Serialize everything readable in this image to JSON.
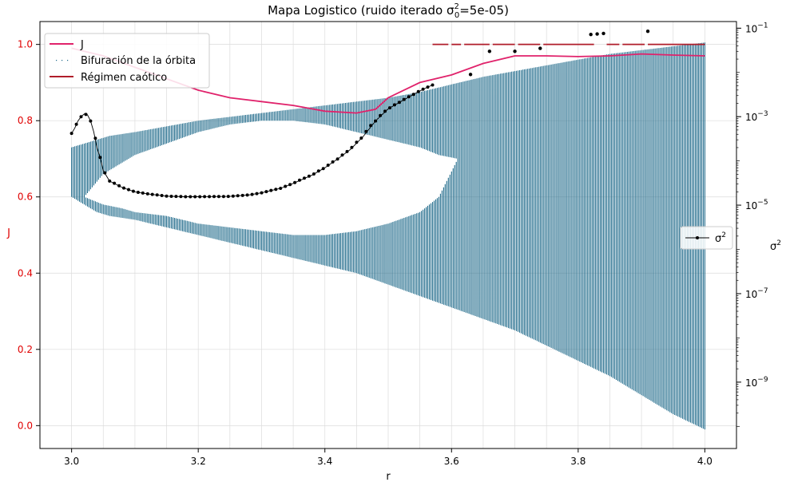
{
  "chart_data": {
    "type": "line",
    "title_main": "Mapa Logistico (ruido iterado ",
    "title_sigma": "σ",
    "title_sup": "2",
    "title_sub": "0",
    "title_tail": "=5e-05)",
    "xlabel": "r",
    "ylabel_left": "J",
    "ylabel_right_base": "σ",
    "ylabel_right_sup": "2",
    "xlim": [
      2.95,
      4.05
    ],
    "ylim_left": [
      -0.06,
      1.06
    ],
    "ylim_right_log10": [
      -10.5,
      -0.85
    ],
    "scale_right": "log",
    "grid": true,
    "x_ticks": [
      {
        "v": 3.0,
        "label": "3.0"
      },
      {
        "v": 3.2,
        "label": "3.2"
      },
      {
        "v": 3.4,
        "label": "3.4"
      },
      {
        "v": 3.6,
        "label": "3.6"
      },
      {
        "v": 3.8,
        "label": "3.8"
      },
      {
        "v": 4.0,
        "label": "4.0"
      }
    ],
    "x_minor_ticks": [
      3.05,
      3.1,
      3.15,
      3.25,
      3.3,
      3.35,
      3.45,
      3.5,
      3.55,
      3.65,
      3.7,
      3.75,
      3.85,
      3.9,
      3.95
    ],
    "y_left_ticks": [
      {
        "v": 0.0,
        "label": "0.0"
      },
      {
        "v": 0.2,
        "label": "0.2"
      },
      {
        "v": 0.4,
        "label": "0.4"
      },
      {
        "v": 0.6,
        "label": "0.6"
      },
      {
        "v": 0.8,
        "label": "0.8"
      },
      {
        "v": 1.0,
        "label": "1.0"
      }
    ],
    "y_right_ticks": [
      {
        "exp": -9,
        "base": "10",
        "sup": "−9"
      },
      {
        "exp": -7,
        "base": "10",
        "sup": "−7"
      },
      {
        "exp": -5,
        "base": "10",
        "sup": "−5"
      },
      {
        "exp": -3,
        "base": "10",
        "sup": "−3"
      },
      {
        "exp": -1,
        "base": "10",
        "sup": "−1"
      }
    ],
    "legend_main": {
      "placement": "upper-left",
      "entries": [
        {
          "label": "J",
          "color": "#e0226b",
          "kind": "line"
        },
        {
          "label": "Bifuración de la órbita",
          "color": "#1f6a8a",
          "kind": "dots"
        },
        {
          "label": "Régimen caótico",
          "color": "#b01d2a",
          "kind": "line"
        }
      ]
    },
    "legend_sigma": {
      "placement": "center-right",
      "entries": [
        {
          "label_base": "σ",
          "label_sup": "2",
          "color": "#000000",
          "kind": "line-marker"
        }
      ]
    },
    "colors": {
      "J": "#e0226b",
      "orbit": "#1f6a8a",
      "chaotic": "#b01d2a",
      "sigma2": "#000000",
      "left_axis_text": "#e00000"
    },
    "series": [
      {
        "name": "J",
        "axis": "left",
        "x": [
          3.0,
          3.05,
          3.1,
          3.15,
          3.2,
          3.25,
          3.3,
          3.35,
          3.4,
          3.45,
          3.48,
          3.5,
          3.55,
          3.6,
          3.65,
          3.7,
          3.75,
          3.8,
          3.85,
          3.9,
          3.95,
          4.0
        ],
        "y": [
          0.99,
          0.97,
          0.94,
          0.91,
          0.88,
          0.86,
          0.85,
          0.84,
          0.825,
          0.82,
          0.83,
          0.86,
          0.9,
          0.92,
          0.95,
          0.97,
          0.97,
          0.968,
          0.97,
          0.975,
          0.972,
          0.97
        ]
      },
      {
        "name": "Bifuración de la órbita",
        "axis": "left",
        "kind": "envelope",
        "x": [
          3.0,
          3.02,
          3.04,
          3.06,
          3.1,
          3.15,
          3.2,
          3.25,
          3.3,
          3.35,
          3.4,
          3.45,
          3.5,
          3.55,
          3.6,
          3.65,
          3.7,
          3.75,
          3.8,
          3.85,
          3.9,
          3.95,
          4.0
        ],
        "upper": [
          0.73,
          0.74,
          0.75,
          0.76,
          0.77,
          0.785,
          0.8,
          0.81,
          0.82,
          0.83,
          0.84,
          0.85,
          0.86,
          0.875,
          0.895,
          0.915,
          0.93,
          0.945,
          0.96,
          0.975,
          0.985,
          0.995,
          1.005
        ],
        "lower": [
          0.6,
          0.58,
          0.56,
          0.55,
          0.54,
          0.52,
          0.5,
          0.48,
          0.46,
          0.44,
          0.42,
          0.4,
          0.37,
          0.34,
          0.31,
          0.28,
          0.25,
          0.21,
          0.17,
          0.13,
          0.08,
          0.03,
          -0.01
        ],
        "gap_top": [
          0.6,
          0.66,
          0.69,
          0.71,
          0.74,
          0.77,
          0.79,
          0.8,
          0.8,
          0.79,
          0.77,
          0.75,
          0.73,
          0.71,
          0.7
        ],
        "gap_bottom": [
          0.6,
          0.58,
          0.57,
          0.56,
          0.55,
          0.53,
          0.52,
          0.51,
          0.5,
          0.5,
          0.51,
          0.53,
          0.56,
          0.6,
          0.7
        ],
        "gap_x": [
          3.02,
          3.05,
          3.08,
          3.1,
          3.15,
          3.2,
          3.25,
          3.3,
          3.35,
          3.4,
          3.45,
          3.5,
          3.55,
          3.58,
          3.61
        ]
      },
      {
        "name": "Régimen caótico",
        "axis": "left",
        "segments": [
          [
            3.57,
            3.595
          ],
          [
            3.6,
            3.615
          ],
          [
            3.62,
            3.66
          ],
          [
            3.665,
            3.7
          ],
          [
            3.705,
            3.74
          ],
          [
            3.745,
            3.825
          ],
          [
            3.845,
            3.865
          ],
          [
            3.87,
            3.905
          ],
          [
            3.91,
            4.0
          ]
        ],
        "y": 1.0
      },
      {
        "name": "σ2",
        "axis": "right",
        "x": [
          3.0,
          3.005,
          3.01,
          3.015,
          3.02,
          3.025,
          3.03,
          3.035,
          3.04,
          3.045,
          3.05,
          3.06,
          3.08,
          3.1,
          3.12,
          3.15,
          3.18,
          3.2,
          3.25,
          3.28,
          3.3,
          3.33,
          3.35,
          3.38,
          3.4,
          3.42,
          3.44,
          3.46,
          3.48,
          3.5,
          3.52,
          3.54,
          3.56,
          3.57,
          3.63,
          3.66,
          3.7,
          3.74,
          3.82,
          3.83,
          3.84,
          3.91
        ],
        "y": [
          0.00042,
          0.00055,
          0.0008,
          0.001,
          0.00115,
          0.0011,
          0.0008,
          0.00045,
          0.0002,
          0.00012,
          6e-05,
          3.5e-05,
          2.5e-05,
          2e-05,
          1.8e-05,
          1.6e-05,
          1.55e-05,
          1.55e-05,
          1.58e-05,
          1.7e-05,
          1.9e-05,
          2.4e-05,
          3.1e-05,
          4.8e-05,
          7e-05,
          0.00011,
          0.00018,
          0.00035,
          0.0008,
          0.0015,
          0.0022,
          0.0032,
          0.0045,
          0.0052,
          0.009,
          0.03,
          0.03,
          0.035,
          0.072,
          0.074,
          0.076,
          0.085
        ]
      }
    ]
  }
}
